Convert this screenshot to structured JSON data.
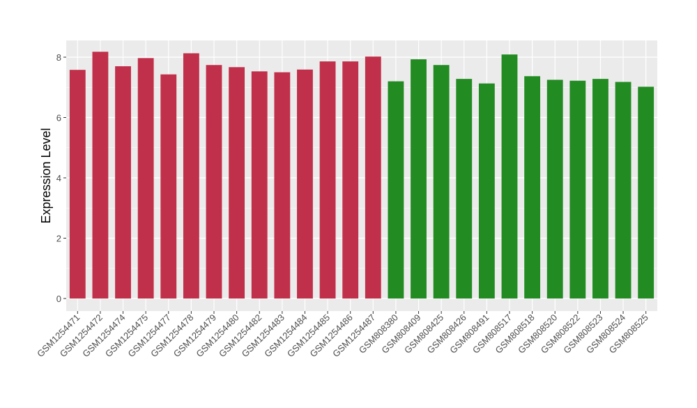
{
  "chart_data": {
    "type": "bar",
    "title": "",
    "xlabel": "",
    "ylabel": "Expression Level",
    "ylim": [
      0,
      8.6
    ],
    "yticks": [
      0,
      2,
      4,
      6,
      8
    ],
    "grid": true,
    "legend": "none",
    "colors": {
      "group1": "#C1304A",
      "group2": "#228B22",
      "panel": "#EBEBEB",
      "gridline": "#FFFFFF"
    },
    "categories": [
      "GSM1254471",
      "GSM1254472",
      "GSM1254474",
      "GSM1254475",
      "GSM1254477",
      "GSM1254478",
      "GSM1254479",
      "GSM1254480",
      "GSM1254482",
      "GSM1254483",
      "GSM1254484",
      "GSM1254485",
      "GSM1254486",
      "GSM1254487",
      "GSM808380",
      "GSM808409",
      "GSM808425",
      "GSM808426",
      "GSM808491",
      "GSM808517",
      "GSM808518",
      "GSM808520",
      "GSM808522",
      "GSM808523",
      "GSM808524",
      "GSM808525"
    ],
    "values": [
      7.58,
      8.18,
      7.7,
      7.97,
      7.43,
      8.13,
      7.74,
      7.67,
      7.53,
      7.5,
      7.59,
      7.86,
      7.86,
      8.02,
      7.2,
      7.93,
      7.74,
      7.28,
      7.13,
      8.09,
      7.37,
      7.25,
      7.22,
      7.28,
      7.18,
      7.02
    ],
    "groups": [
      "group1",
      "group1",
      "group1",
      "group1",
      "group1",
      "group1",
      "group1",
      "group1",
      "group1",
      "group1",
      "group1",
      "group1",
      "group1",
      "group1",
      "group2",
      "group2",
      "group2",
      "group2",
      "group2",
      "group2",
      "group2",
      "group2",
      "group2",
      "group2",
      "group2",
      "group2"
    ]
  }
}
